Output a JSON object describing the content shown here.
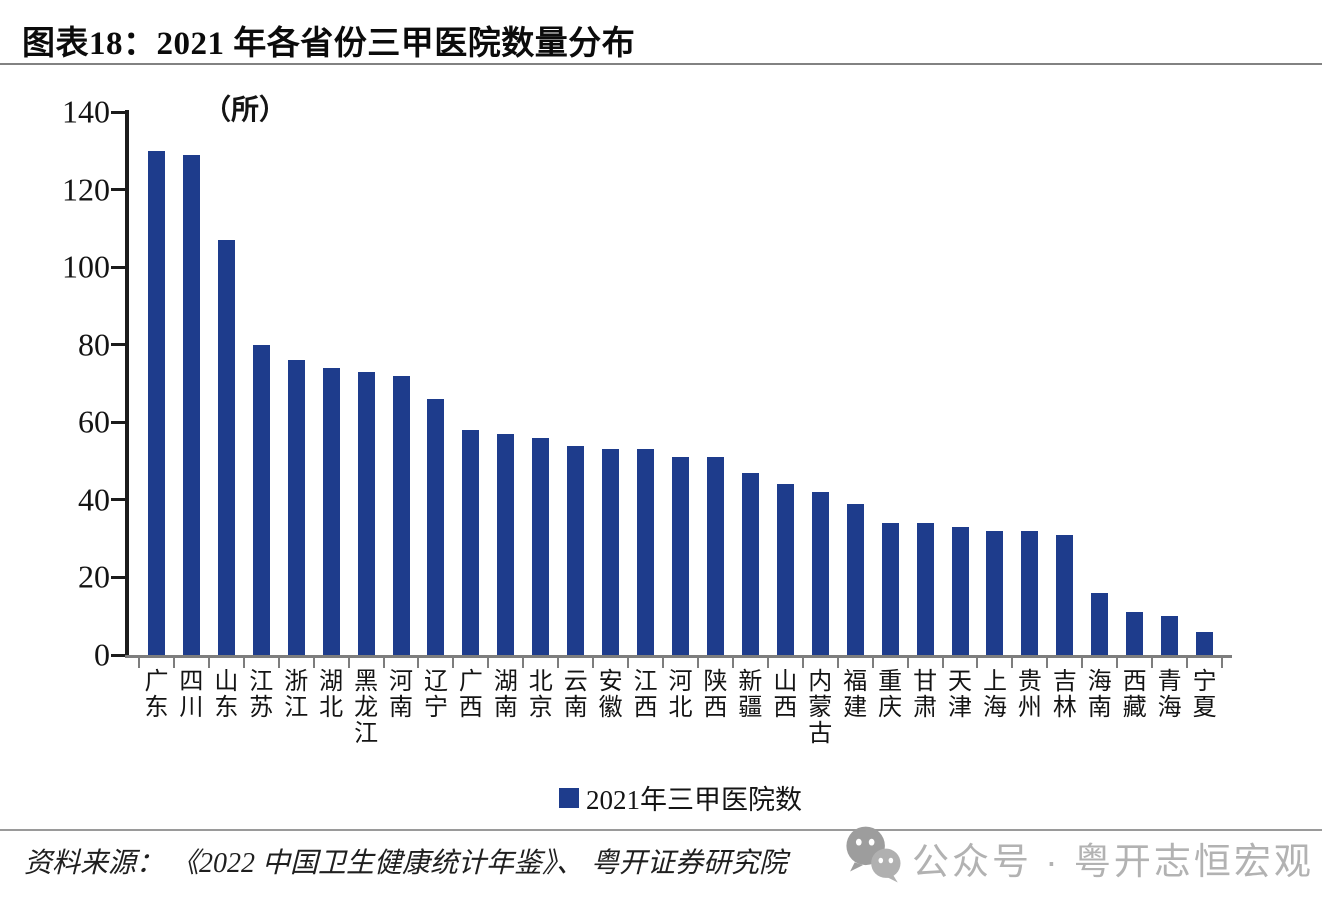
{
  "header": {
    "title": "图表18：2021 年各省份三甲医院数量分布"
  },
  "chart_data": {
    "type": "bar",
    "title": "2021 年各省份三甲医院数量分布",
    "unit_label": "（所）",
    "categories": [
      "广东",
      "四川",
      "山东",
      "江苏",
      "浙江",
      "湖北",
      "黑龙江",
      "河南",
      "辽宁",
      "广西",
      "湖南",
      "北京",
      "云南",
      "安徽",
      "江西",
      "河北",
      "陕西",
      "新疆",
      "山西",
      "内蒙古",
      "福建",
      "重庆",
      "甘肃",
      "天津",
      "上海",
      "贵州",
      "吉林",
      "海南",
      "西藏",
      "青海",
      "宁夏"
    ],
    "values": [
      130,
      129,
      107,
      80,
      76,
      74,
      73,
      72,
      66,
      58,
      57,
      56,
      54,
      53,
      53,
      51,
      51,
      47,
      44,
      42,
      39,
      34,
      34,
      33,
      32,
      32,
      31,
      16,
      11,
      10,
      6
    ],
    "series_name": "2021年三甲医院数",
    "xlabel": "",
    "ylabel": "",
    "ylim": [
      0,
      140
    ],
    "yticks": [
      0,
      20,
      40,
      60,
      80,
      100,
      120,
      140
    ],
    "grid": false,
    "bar_color": "#1e3c8c",
    "legend_position": "bottom"
  },
  "legend": {
    "label": "2021年三甲医院数"
  },
  "footer": {
    "source": "资料来源： 《2022 中国卫生健康统计年鉴》、 粤开证券研究院",
    "watermark": "公众号 · 粤开志恒宏观",
    "watermark_icon": "wechat-icon"
  }
}
